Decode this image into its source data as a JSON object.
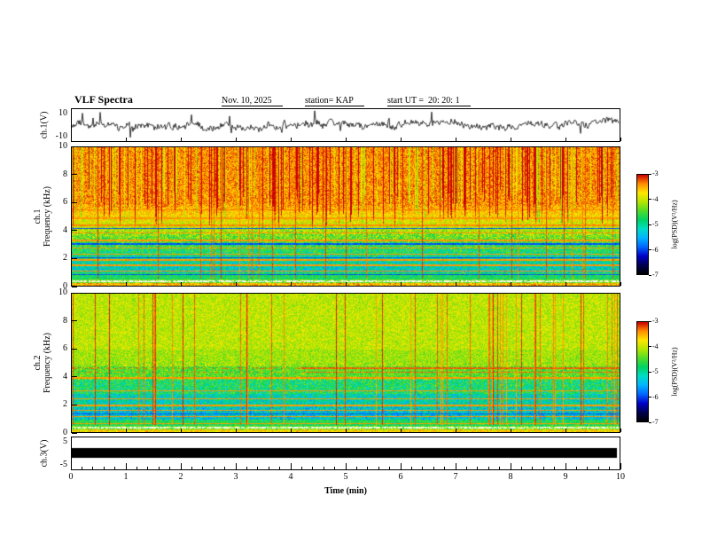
{
  "header": {
    "title": "VLF Spectra",
    "date": "Nov. 10, 2025",
    "station": "station= KAP",
    "start_ut": "start UT =  20: 20: 1"
  },
  "xaxis": {
    "label": "Time (min)",
    "range": [
      0,
      10
    ],
    "ticks": [
      0,
      1,
      2,
      3,
      4,
      5,
      6,
      7,
      8,
      9,
      10
    ]
  },
  "panels": {
    "wave1": {
      "ylabel": "ch.1(V)",
      "ylim": [
        -10,
        10
      ],
      "ytick_top": "10",
      "ytick_bottom": "-10"
    },
    "spec1": {
      "ylabel_channel": "ch.1",
      "ylabel_axis": "Frequency (kHz)",
      "ylim": [
        0,
        10
      ],
      "yticks": [
        0,
        2,
        4,
        6,
        8,
        10
      ]
    },
    "spec2": {
      "ylabel_channel": "ch.2",
      "ylabel_axis": "Frequency (kHz)",
      "ylim": [
        0,
        10
      ],
      "yticks": [
        0,
        2,
        4,
        6,
        8,
        10
      ]
    },
    "wave3": {
      "ylabel": "ch.3(V)",
      "ylim": [
        -5,
        5
      ],
      "ytick_top": "5",
      "ytick_bottom": "-5"
    }
  },
  "colorbar": {
    "label": "log(PSD)(V²/Hz)",
    "ticks": [
      "-3",
      "-4",
      "-5",
      "-6",
      "-7"
    ],
    "range": [
      -7,
      -3
    ]
  },
  "colormap": [
    "#000000",
    "#000050",
    "#0000c8",
    "#0064ff",
    "#00b4ff",
    "#00dcc8",
    "#00d264",
    "#50dc28",
    "#b4e600",
    "#ffe600",
    "#ff8c00",
    "#c80000"
  ],
  "colors": {
    "background": "#ffffff",
    "axis": "#000000",
    "waveform": "#000000"
  },
  "chart_data": [
    {
      "type": "line",
      "name": "ch.1 voltage waveform",
      "xlabel": "Time (min)",
      "xlim": [
        0,
        10
      ],
      "ylabel": "ch.1(V)",
      "ylim": [
        -10,
        10
      ],
      "yticks": [
        10,
        -10
      ],
      "summary": "Dense noisy voltage trace fluctuating about 0 V with repeated spikes reaching toward +10 and -10 V across the full 10-minute record."
    },
    {
      "type": "heatmap",
      "name": "ch.1 spectrogram",
      "xlabel": "Time (min)",
      "xlim": [
        0,
        10
      ],
      "ylabel": "Frequency (kHz)",
      "ylim": [
        0,
        10
      ],
      "yticks": [
        0,
        2,
        4,
        6,
        8,
        10
      ],
      "zlabel": "log(PSD)(V²/Hz)",
      "zlim": [
        -7,
        -3
      ],
      "summary": "Strong PSD near -3 (red/orange) above about 5.5 kHz with dense vertical burst striations; yellow-green 3-5 kHz; green-cyan horizontal banding with blue speckle between 1 and 3 kHz; thin red and dark interference lines at fixed frequencies; bright yellow-red band just above 0 kHz."
    },
    {
      "type": "heatmap",
      "name": "ch.2 spectrogram",
      "xlabel": "Time (min)",
      "xlim": [
        0,
        10
      ],
      "ylabel": "Frequency (kHz)",
      "ylim": [
        0,
        10
      ],
      "yticks": [
        0,
        2,
        4,
        6,
        8,
        10
      ],
      "zlabel": "log(PSD)(V²/Hz)",
      "zlim": [
        -7,
        -3
      ],
      "summary": "Yellow-green PSD near -4 above about 4 kHz crossed by many thin red vertical lines, denser in the second half of the record, plus red horizontal interference lines near 4.3-4.7 kHz; green-cyan bands with blue speckle 1-3.5 kHz; bright band just above 0 kHz."
    },
    {
      "type": "line",
      "name": "ch.3 voltage waveform",
      "xlabel": "Time (min)",
      "xlim": [
        0,
        10
      ],
      "ylabel": "ch.3(V)",
      "ylim": [
        -5,
        5
      ],
      "yticks": [
        5,
        -5
      ],
      "summary": "Saturated trace drawn as a solid black band around 0 V spanning the entire record."
    }
  ]
}
